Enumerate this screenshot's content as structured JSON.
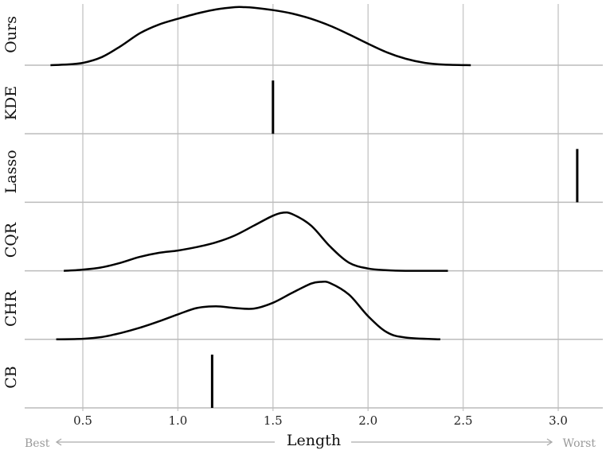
{
  "chart_data": {
    "type": "ridgeline",
    "xlabel": "Length",
    "xlim": [
      0.2,
      3.2
    ],
    "xticks": [
      0.5,
      1.0,
      1.5,
      2.0,
      2.5,
      3.0
    ],
    "xtick_labels": [
      "0.5",
      "1.0",
      "1.5",
      "2.0",
      "2.5",
      "3.0"
    ],
    "grid": true,
    "left_annotation": "Best",
    "right_annotation": "Worst",
    "colors": {
      "line": "#000000",
      "grid": "#cccccc",
      "baseline": "#bbbbbb",
      "annotation": "#999999"
    },
    "rows": [
      {
        "name": "Ours",
        "kind": "density",
        "x": [
          0.33,
          0.4,
          0.5,
          0.6,
          0.7,
          0.8,
          0.9,
          1.0,
          1.1,
          1.2,
          1.3,
          1.35,
          1.4,
          1.5,
          1.6,
          1.7,
          1.8,
          1.9,
          2.0,
          2.1,
          2.2,
          2.3,
          2.4,
          2.54
        ],
        "y": [
          0.0,
          0.01,
          0.04,
          0.14,
          0.33,
          0.55,
          0.7,
          0.8,
          0.89,
          0.96,
          1.0,
          1.0,
          0.99,
          0.95,
          0.89,
          0.8,
          0.68,
          0.53,
          0.37,
          0.22,
          0.11,
          0.04,
          0.01,
          0.0
        ]
      },
      {
        "name": "KDE",
        "kind": "point",
        "value": 1.5
      },
      {
        "name": "Lasso",
        "kind": "point",
        "value": 3.1
      },
      {
        "name": "CQR",
        "kind": "density",
        "x": [
          0.4,
          0.5,
          0.6,
          0.7,
          0.8,
          0.9,
          1.0,
          1.1,
          1.2,
          1.3,
          1.4,
          1.5,
          1.55,
          1.6,
          1.7,
          1.8,
          1.9,
          2.0,
          2.1,
          2.2,
          2.42
        ],
        "y": [
          0.0,
          0.02,
          0.06,
          0.14,
          0.24,
          0.31,
          0.35,
          0.41,
          0.49,
          0.61,
          0.78,
          0.95,
          1.0,
          0.98,
          0.78,
          0.42,
          0.14,
          0.04,
          0.01,
          0.0,
          0.0
        ]
      },
      {
        "name": "CHR",
        "kind": "density",
        "x": [
          0.36,
          0.5,
          0.6,
          0.7,
          0.8,
          0.9,
          1.0,
          1.1,
          1.2,
          1.3,
          1.4,
          1.5,
          1.6,
          1.7,
          1.75,
          1.8,
          1.9,
          2.0,
          2.1,
          2.2,
          2.38
        ],
        "y": [
          0.0,
          0.01,
          0.04,
          0.11,
          0.2,
          0.31,
          0.43,
          0.54,
          0.57,
          0.54,
          0.53,
          0.63,
          0.8,
          0.96,
          0.99,
          0.97,
          0.77,
          0.4,
          0.12,
          0.03,
          0.0
        ]
      },
      {
        "name": "CB",
        "kind": "point",
        "value": 1.18
      }
    ]
  }
}
